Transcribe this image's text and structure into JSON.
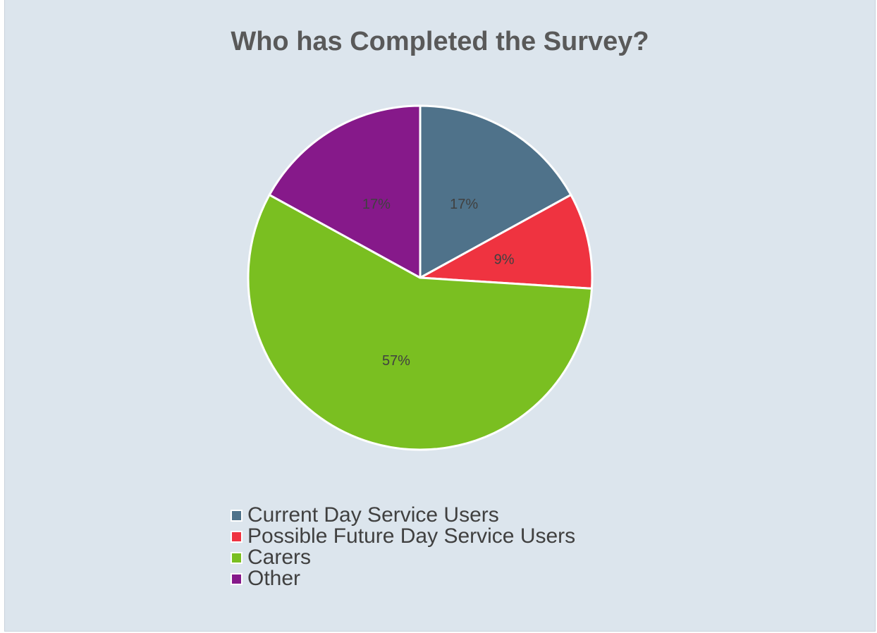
{
  "chart_data": {
    "type": "pie",
    "title": "Who has Completed the Survey?",
    "categories": [
      "Current Day Service Users",
      "Possible Future Day Service Users",
      "Carers",
      "Other"
    ],
    "values": [
      17,
      9,
      57,
      17
    ],
    "data_labels": [
      "17%",
      "9%",
      "57%",
      "17%"
    ],
    "colors": [
      "#4f728a",
      "#ef3340",
      "#7abf21",
      "#86198a"
    ],
    "legend_placement": "bottom",
    "start_angle_deg": 0,
    "direction": "clockwise"
  },
  "colors": {
    "background": "#dce5ed",
    "slice_border": "#ffffff",
    "title": "#595959",
    "text": "#404040"
  }
}
